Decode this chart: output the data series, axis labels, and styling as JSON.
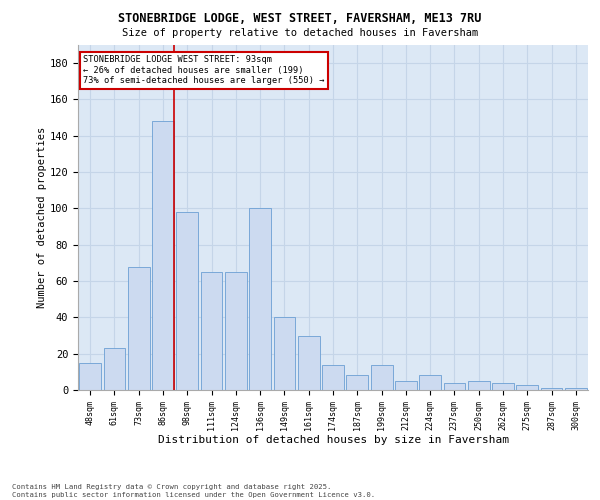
{
  "title1": "STONEBRIDGE LODGE, WEST STREET, FAVERSHAM, ME13 7RU",
  "title2": "Size of property relative to detached houses in Faversham",
  "xlabel": "Distribution of detached houses by size in Faversham",
  "ylabel": "Number of detached properties",
  "categories": [
    "48sqm",
    "61sqm",
    "73sqm",
    "86sqm",
    "98sqm",
    "111sqm",
    "124sqm",
    "136sqm",
    "149sqm",
    "161sqm",
    "174sqm",
    "187sqm",
    "199sqm",
    "212sqm",
    "224sqm",
    "237sqm",
    "250sqm",
    "262sqm",
    "275sqm",
    "287sqm",
    "300sqm"
  ],
  "values": [
    15,
    23,
    68,
    148,
    98,
    65,
    65,
    100,
    40,
    30,
    14,
    8,
    14,
    5,
    8,
    4,
    5,
    4,
    3,
    1,
    1
  ],
  "bar_color": "#ccdaf0",
  "bar_edge_color": "#6b9fd4",
  "grid_color": "#c5d5e8",
  "background_color": "#dce8f5",
  "annotation_text": "STONEBRIDGE LODGE WEST STREET: 93sqm\n← 26% of detached houses are smaller (199)\n73% of semi-detached houses are larger (550) →",
  "annotation_box_color": "#ffffff",
  "annotation_box_edge": "#cc0000",
  "vline_x_index": 3,
  "vline_color": "#cc0000",
  "footer": "Contains HM Land Registry data © Crown copyright and database right 2025.\nContains public sector information licensed under the Open Government Licence v3.0.",
  "ylim": [
    0,
    190
  ],
  "yticks": [
    0,
    20,
    40,
    60,
    80,
    100,
    120,
    140,
    160,
    180
  ]
}
